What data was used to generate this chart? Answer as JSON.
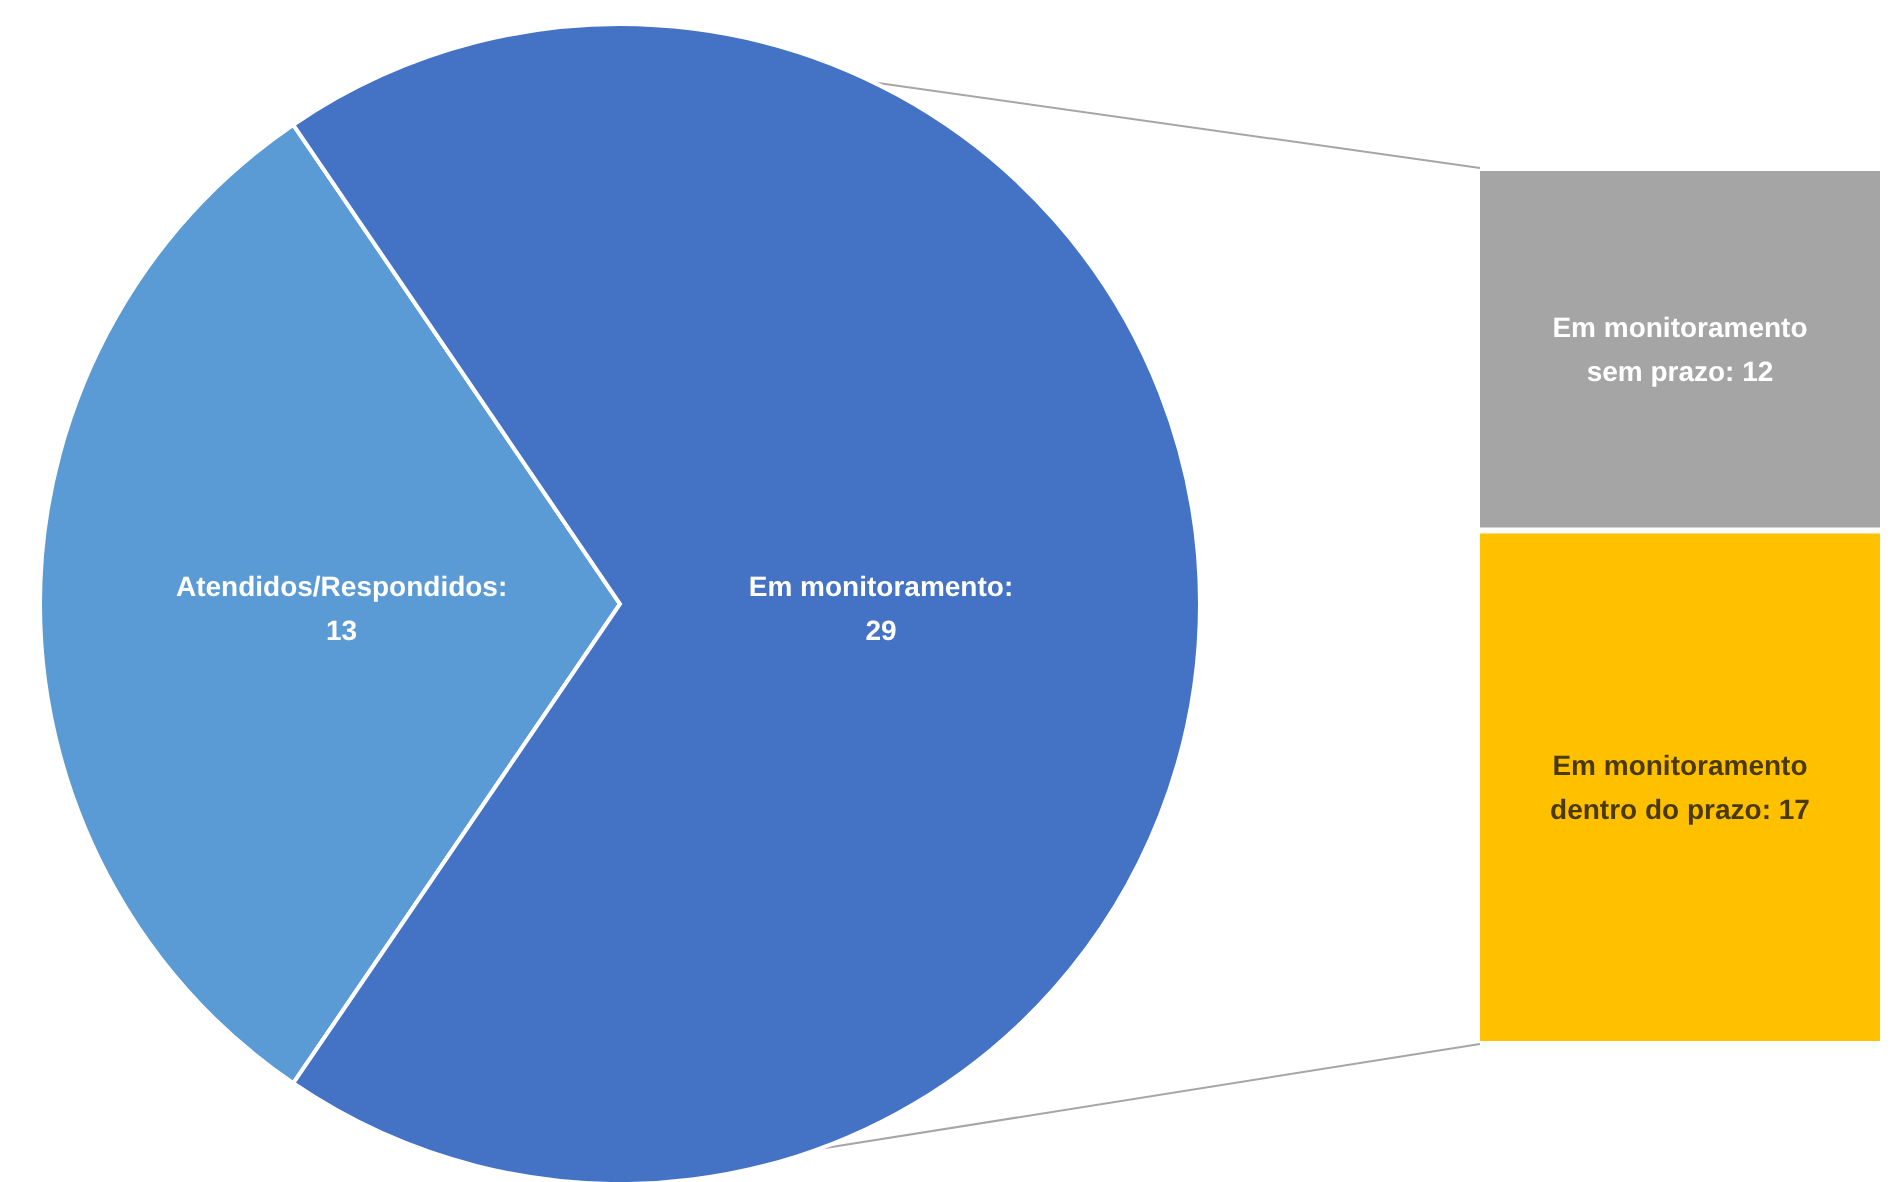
{
  "chart_data": [
    {
      "type": "pie",
      "categories": [
        null,
        null
      ],
      "values": [
        13,
        29
      ],
      "colors": [
        "#5b9bd5",
        "#4472c4"
      ],
      "value_labels": [
        "Atendidos/Respondidos: 13",
        "Em monitoramento: 29"
      ]
    },
    {
      "type": "bar",
      "stacked": true,
      "categories": [
        null
      ],
      "ylim": [
        0,
        29
      ],
      "tick_labels": false,
      "series": [
        {
          "color": "#ffc000",
          "values": [
            17
          ],
          "value_labels": [
            "Em monitoramento dentro do prazo: 17"
          ]
        },
        {
          "color": "#a5a5a5",
          "values": [
            12
          ],
          "value_labels": [
            "Em monitoramento sem prazo: 12"
          ]
        }
      ]
    }
  ]
}
